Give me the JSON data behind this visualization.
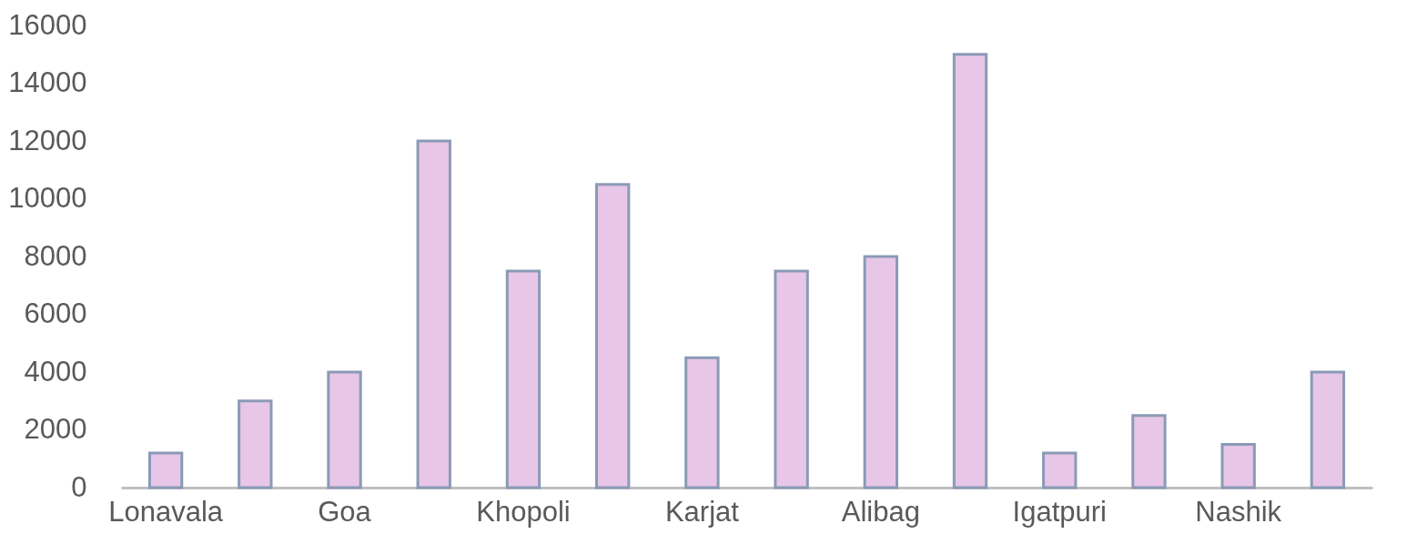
{
  "chart_data": {
    "type": "bar",
    "categories": [
      "Lonavala",
      null,
      "Goa",
      null,
      "Khopoli",
      null,
      "Karjat",
      null,
      "Alibag",
      null,
      "Igatpuri",
      null,
      "Nashik",
      null
    ],
    "values": [
      1200,
      3000,
      4000,
      12000,
      7500,
      10500,
      4500,
      7500,
      8000,
      15000,
      1200,
      2500,
      1500,
      4000
    ],
    "color": "#e8c6e8",
    "ylim": [
      0,
      16000
    ],
    "yticks": [
      0,
      2000,
      4000,
      6000,
      8000,
      10000,
      12000,
      14000,
      16000
    ],
    "grid": false
  }
}
